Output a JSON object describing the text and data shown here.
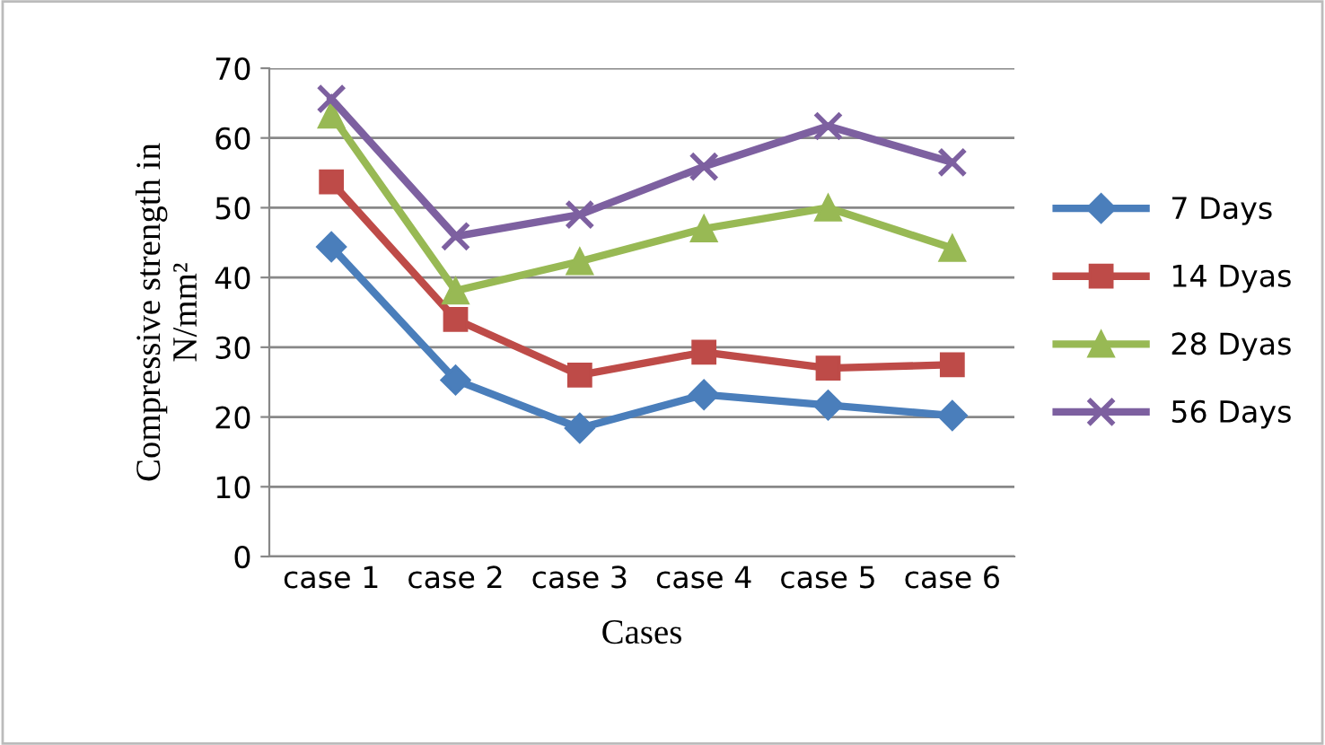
{
  "chart_data": {
    "type": "line",
    "categories": [
      "case 1",
      "case 2",
      "case 3",
      "case 4",
      "case 5",
      "case 6"
    ],
    "xlabel": "Cases",
    "ylabel": "Compressive strength in\nN/mm²",
    "ylim": [
      0,
      70
    ],
    "yticks": [
      0,
      10,
      20,
      30,
      40,
      50,
      60,
      70
    ],
    "grid": "y",
    "legend": "right",
    "line_style": "solid",
    "series": [
      {
        "name": "7 Days",
        "color": "#4a7ebb",
        "marker": "diamond",
        "values": [
          44.4,
          25.3,
          18.4,
          23.2,
          21.7,
          20.2
        ]
      },
      {
        "name": "14 Dyas",
        "color": "#be4b48",
        "marker": "square",
        "values": [
          53.7,
          34.0,
          26.0,
          29.3,
          27.0,
          27.5
        ]
      },
      {
        "name": "28 Dyas",
        "color": "#98b954",
        "marker": "triangle",
        "values": [
          63.3,
          38.1,
          42.3,
          47.0,
          50.0,
          44.2
        ]
      },
      {
        "name": "56 Days",
        "color": "#7d60a0",
        "marker": "cross",
        "values": [
          65.6,
          45.9,
          49.0,
          55.9,
          61.7,
          56.5
        ]
      }
    ]
  }
}
